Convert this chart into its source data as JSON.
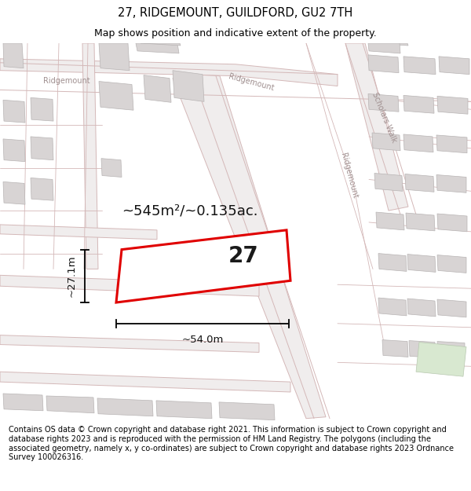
{
  "title_line1": "27, RIDGEMOUNT, GUILDFORD, GU2 7TH",
  "title_line2": "Map shows position and indicative extent of the property.",
  "footer_text": "Contains OS data © Crown copyright and database right 2021. This information is subject to Crown copyright and database rights 2023 and is reproduced with the permission of HM Land Registry. The polygons (including the associated geometry, namely x, y co-ordinates) are subject to Crown copyright and database rights 2023 Ordnance Survey 100026316.",
  "area_label": "~545m²/~0.135ac.",
  "number_label": "27",
  "width_label": "~54.0m",
  "height_label": "~27.1m",
  "bg_color": "#ffffff",
  "map_bg": "#ffffff",
  "road_fill": "#f0eded",
  "road_line": "#d4b8b8",
  "building_color": "#d8d4d4",
  "building_edge": "#b8b4b4",
  "plot_fill": "#ffffff",
  "plot_edge": "#e00000",
  "title_fontsize": 10.5,
  "subtitle_fontsize": 9,
  "footer_fontsize": 7.0,
  "label_fontsize": 13,
  "dim_fontsize": 9.5,
  "num_fontsize": 20,
  "road_label_color": "#a09090",
  "road_label_size": 7.0
}
